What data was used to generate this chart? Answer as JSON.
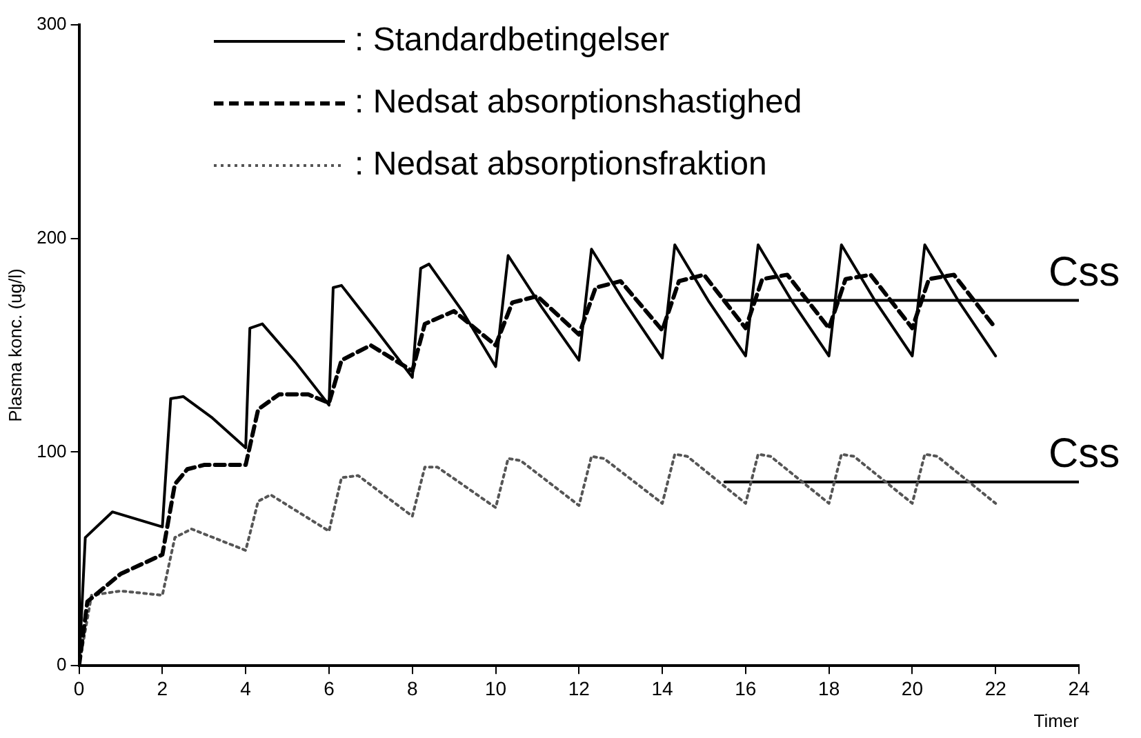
{
  "chart_data": {
    "type": "line",
    "xlabel": "Timer",
    "ylabel": "Plasma konc. (ug/l)",
    "xlim": [
      0,
      24
    ],
    "ylim": [
      0,
      300
    ],
    "xticks": [
      0,
      2,
      4,
      6,
      8,
      10,
      12,
      14,
      16,
      18,
      20,
      22,
      24
    ],
    "yticks": [
      0,
      100,
      200,
      300
    ],
    "grid": false,
    "legend": "top",
    "marker": "none",
    "series": [
      {
        "name": ": Standardbetingelser",
        "color": "#000000",
        "line_style": "solid",
        "x": [
          0,
          0.15,
          0.8,
          2,
          2.2,
          2.5,
          3.2,
          4,
          4.1,
          4.4,
          5.2,
          6,
          6.1,
          6.3,
          7.1,
          8,
          8.2,
          8.4,
          9.2,
          10,
          10.3,
          11.1,
          12,
          12.3,
          13.1,
          14,
          14.3,
          15.1,
          16,
          16.3,
          17.1,
          18,
          18.3,
          19.1,
          20,
          20.3,
          21.1,
          22
        ],
        "values": [
          0,
          60,
          72,
          65,
          125,
          126,
          116,
          102,
          158,
          160,
          142,
          122,
          177,
          178,
          158,
          135,
          186,
          188,
          166,
          140,
          192,
          168,
          143,
          195,
          170,
          144,
          197,
          171,
          145,
          197,
          171,
          145,
          197,
          171,
          145,
          197,
          171,
          145
        ]
      },
      {
        "name": ": Nedsat absorptionshastighed",
        "color": "#000000",
        "line_style": "dashed",
        "x": [
          0,
          0.2,
          1,
          2,
          2.3,
          2.6,
          3,
          4,
          4.3,
          4.8,
          5.5,
          6,
          6.3,
          7,
          8,
          8.3,
          9,
          10,
          10.4,
          11,
          12,
          12.4,
          13,
          14,
          14.4,
          15,
          16,
          16.4,
          17,
          18,
          18.4,
          19,
          20,
          20.4,
          21,
          22
        ],
        "values": [
          0,
          30,
          43,
          52,
          85,
          92,
          94,
          94,
          120,
          127,
          127,
          123,
          143,
          150,
          138,
          160,
          166,
          150,
          170,
          173,
          155,
          177,
          180,
          157,
          180,
          183,
          158,
          181,
          183,
          158,
          181,
          183,
          158,
          181,
          183,
          158
        ]
      },
      {
        "name": ": Nedsat absorptionsfraktion",
        "color": "#555555",
        "line_style": "dotted",
        "x": [
          0,
          0.3,
          1,
          2,
          2.3,
          2.7,
          4,
          4.3,
          4.6,
          6,
          6.3,
          6.7,
          8,
          8.3,
          8.6,
          10,
          10.3,
          10.6,
          12,
          12.3,
          12.6,
          14,
          14.3,
          14.6,
          16,
          16.3,
          16.6,
          18,
          18.3,
          18.6,
          20,
          20.3,
          20.6,
          22
        ],
        "values": [
          0,
          33,
          35,
          33,
          60,
          64,
          54,
          77,
          80,
          63,
          88,
          89,
          70,
          93,
          93,
          74,
          97,
          96,
          75,
          98,
          97,
          76,
          99,
          98,
          76,
          99,
          98,
          76,
          99,
          98,
          76,
          99,
          98,
          76
        ]
      },
      {
        "color": "#000000",
        "line_style": "solid",
        "x": [
          15.5,
          24
        ],
        "values": [
          171,
          171
        ]
      },
      {
        "color": "#000000",
        "line_style": "solid",
        "x": [
          15.5,
          24
        ],
        "values": [
          86,
          86
        ]
      }
    ],
    "annotations": [
      {
        "text": "Css",
        "x": 24,
        "y": 171
      },
      {
        "text": "Css",
        "x": 24,
        "y": 86
      }
    ]
  }
}
